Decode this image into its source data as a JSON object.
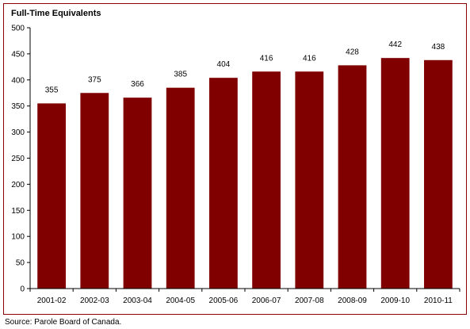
{
  "chart_data": {
    "type": "bar",
    "title": "Full-Time Equivalents",
    "xlabel": "",
    "ylabel": "",
    "categories": [
      "2001-02",
      "2002-03",
      "2003-04",
      "2004-05",
      "2005-06",
      "2006-07",
      "2007-08",
      "2008-09",
      "2009-10",
      "2010-11"
    ],
    "values": [
      355,
      375,
      366,
      385,
      404,
      416,
      416,
      428,
      442,
      438
    ],
    "ylim": [
      0,
      500
    ],
    "yticks": [
      0,
      50,
      100,
      150,
      200,
      250,
      300,
      350,
      400,
      450,
      500
    ],
    "grid": false,
    "legend": "none",
    "bar_color": "#800000",
    "border_color": "#8b0000"
  },
  "source": "Source:  Parole Board of Canada."
}
